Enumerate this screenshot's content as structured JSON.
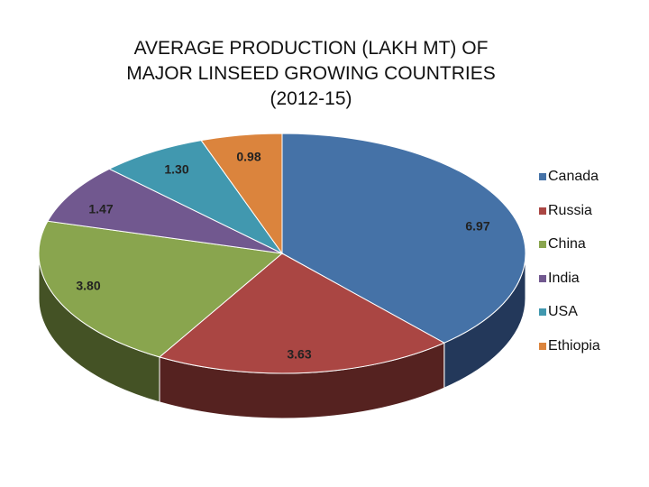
{
  "chart_data": {
    "type": "pie",
    "title_lines": [
      "AVERAGE PRODUCTION (LAKH MT) OF",
      "MAJOR LINSEED GROWING COUNTRIES",
      "(2012-15)"
    ],
    "slices": [
      {
        "name": "Canada",
        "value": 6.97,
        "label": "6.97",
        "color": "#4572A7",
        "side_color": "#23385A"
      },
      {
        "name": "Russia",
        "value": 3.63,
        "label": "3.63",
        "color": "#AA4643",
        "side_color": "#552220"
      },
      {
        "name": "China",
        "value": 3.8,
        "label": "3.80",
        "color": "#89A54E",
        "side_color": "#445225"
      },
      {
        "name": "India",
        "value": 1.47,
        "label": "1.47",
        "color": "#71588F",
        "side_color": "#382C47"
      },
      {
        "name": "USA",
        "value": 1.3,
        "label": "1.30",
        "color": "#4198AF",
        "side_color": "#204C57"
      },
      {
        "name": "Ethiopia",
        "value": 0.98,
        "label": "0.98",
        "color": "#DB843D",
        "side_color": "#6D421E"
      }
    ],
    "legend_position": "right",
    "three_d": true
  }
}
